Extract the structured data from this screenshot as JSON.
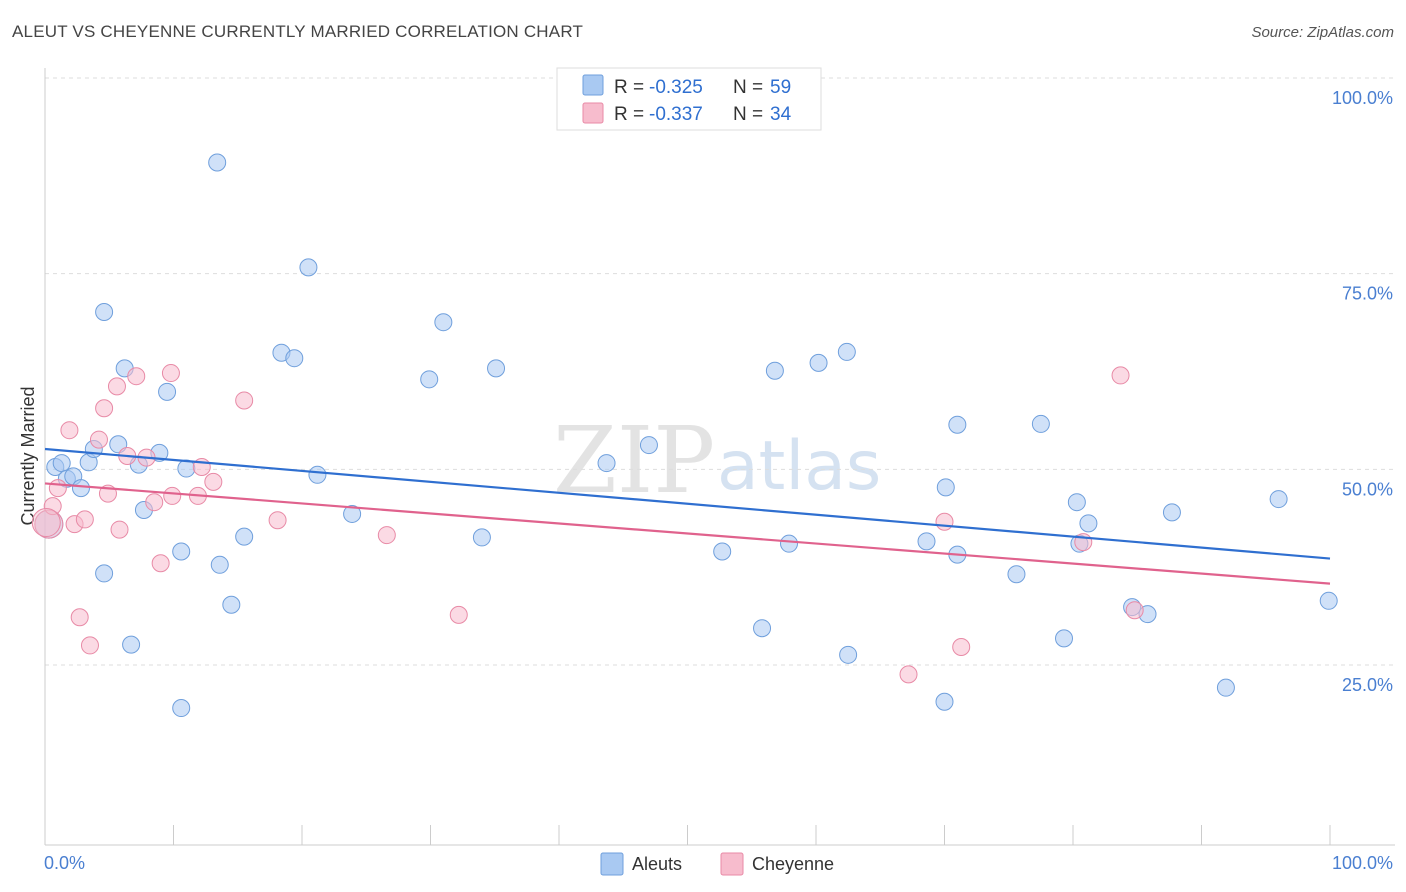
{
  "chart_data": {
    "type": "scatter",
    "title": "ALEUT VS CHEYENNE CURRENTLY MARRIED CORRELATION CHART",
    "source": "Source: ZipAtlas.com",
    "ylabel": "Currently Married",
    "xlabel": "",
    "xlim": [
      0,
      100
    ],
    "ylim": [
      2,
      100
    ],
    "x_tick_labels": [
      "0.0%",
      "100.0%"
    ],
    "y_ticks": [
      {
        "value": 100,
        "label": "100.0%"
      },
      {
        "value": 75,
        "label": "75.0%"
      },
      {
        "value": 50,
        "label": "50.0%"
      },
      {
        "value": 25,
        "label": "25.0%"
      }
    ],
    "watermark": {
      "zip": "ZIP",
      "atlas": "atlas"
    },
    "stats": [
      {
        "r_label": "R = ",
        "r": "-0.325",
        "n_label": "N = ",
        "n": "59",
        "color": "#a9c9f2"
      },
      {
        "r_label": "R = ",
        "r": "-0.337",
        "n_label": "N = ",
        "n": "34",
        "color": "#f7bccd"
      }
    ],
    "series": [
      {
        "name": "Aleuts",
        "color": "#a9c9f2",
        "stroke": "#6f9fdc",
        "trend_color": "#2f6fd0",
        "trend": [
          [
            0,
            52.6
          ],
          [
            100,
            38.6
          ]
        ],
        "points": [
          [
            0.3,
            43
          ],
          [
            0.8,
            50.3
          ],
          [
            1.3,
            50.8
          ],
          [
            1.7,
            48.8
          ],
          [
            2.2,
            49.1
          ],
          [
            2.8,
            47.6
          ],
          [
            3.4,
            50.9
          ],
          [
            3.8,
            52.6
          ],
          [
            4.6,
            36.7
          ],
          [
            4.6,
            70.1
          ],
          [
            5.7,
            53.2
          ],
          [
            6.2,
            62.9
          ],
          [
            6.7,
            27.6
          ],
          [
            7.3,
            50.6
          ],
          [
            7.7,
            44.8
          ],
          [
            8.9,
            52.1
          ],
          [
            9.5,
            59.9
          ],
          [
            10.6,
            39.5
          ],
          [
            10.6,
            19.5
          ],
          [
            11.0,
            50.1
          ],
          [
            13.4,
            89.2
          ],
          [
            13.6,
            37.8
          ],
          [
            14.5,
            32.7
          ],
          [
            15.5,
            41.4
          ],
          [
            18.4,
            64.9
          ],
          [
            19.4,
            64.2
          ],
          [
            20.5,
            75.8
          ],
          [
            21.2,
            49.3
          ],
          [
            23.9,
            44.3
          ],
          [
            29.9,
            61.5
          ],
          [
            31.0,
            68.8
          ],
          [
            34.0,
            41.3
          ],
          [
            35.1,
            62.9
          ],
          [
            43.7,
            50.8
          ],
          [
            47.0,
            53.1
          ],
          [
            52.7,
            39.5
          ],
          [
            55.8,
            29.7
          ],
          [
            56.8,
            62.6
          ],
          [
            57.9,
            40.5
          ],
          [
            60.2,
            63.6
          ],
          [
            62.5,
            26.3
          ],
          [
            62.4,
            65
          ],
          [
            68.6,
            40.8
          ],
          [
            70.0,
            20.3
          ],
          [
            70.1,
            47.7
          ],
          [
            71.0,
            55.7
          ],
          [
            71.0,
            39.1
          ],
          [
            75.6,
            36.6
          ],
          [
            77.5,
            55.8
          ],
          [
            79.3,
            28.4
          ],
          [
            80.3,
            45.8
          ],
          [
            80.5,
            40.5
          ],
          [
            81.2,
            43.1
          ],
          [
            84.6,
            32.4
          ],
          [
            85.8,
            31.5
          ],
          [
            87.7,
            44.5
          ],
          [
            91.9,
            22.1
          ],
          [
            96.0,
            46.2
          ],
          [
            99.9,
            33.2
          ]
        ]
      },
      {
        "name": "Cheyenne",
        "color": "#f7bccd",
        "stroke": "#e88aa6",
        "trend_color": "#e0628d",
        "trend": [
          [
            0,
            48.2
          ],
          [
            100,
            35.4
          ]
        ],
        "points": [
          [
            0.3,
            43
          ],
          [
            0.6,
            45.3
          ],
          [
            1.0,
            47.6
          ],
          [
            1.9,
            55.0
          ],
          [
            2.3,
            43.0
          ],
          [
            2.7,
            31.1
          ],
          [
            3.1,
            43.6
          ],
          [
            3.5,
            27.5
          ],
          [
            4.2,
            53.8
          ],
          [
            4.6,
            57.8
          ],
          [
            4.9,
            46.9
          ],
          [
            5.6,
            60.6
          ],
          [
            5.8,
            42.3
          ],
          [
            6.4,
            51.7
          ],
          [
            7.1,
            61.9
          ],
          [
            7.9,
            51.5
          ],
          [
            8.5,
            45.8
          ],
          [
            9.0,
            38.0
          ],
          [
            9.8,
            62.3
          ],
          [
            9.9,
            46.6
          ],
          [
            11.9,
            46.6
          ],
          [
            12.2,
            50.3
          ],
          [
            13.1,
            48.4
          ],
          [
            15.5,
            58.8
          ],
          [
            18.1,
            43.5
          ],
          [
            26.6,
            41.6
          ],
          [
            32.2,
            31.4
          ],
          [
            67.2,
            23.8
          ],
          [
            70.0,
            43.3
          ],
          [
            71.3,
            27.3
          ],
          [
            80.8,
            40.7
          ],
          [
            83.7,
            62.0
          ],
          [
            84.8,
            32.0
          ],
          [
            0.1,
            43.2
          ]
        ]
      }
    ]
  }
}
